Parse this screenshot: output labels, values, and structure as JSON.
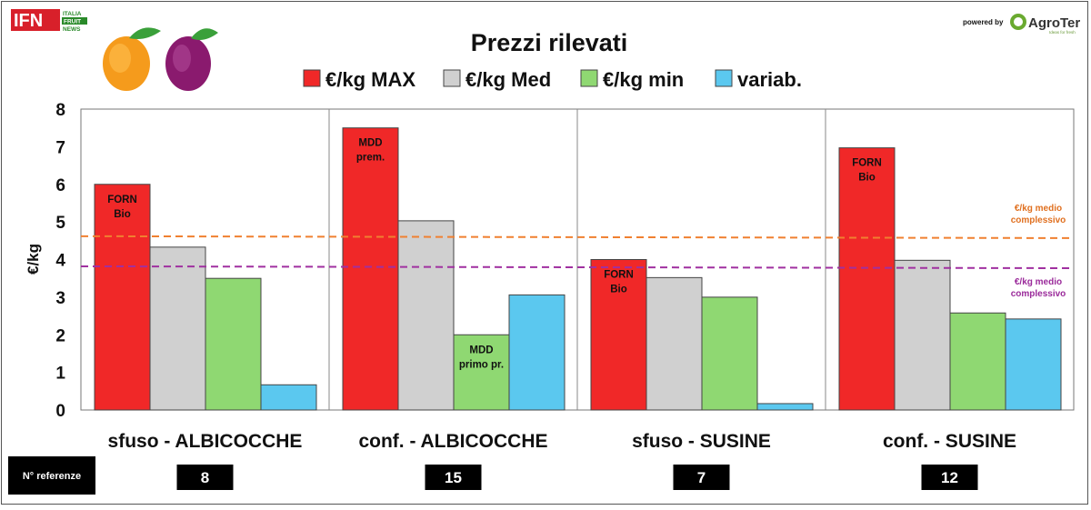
{
  "header": {
    "logo_left": {
      "main": "IFN",
      "line1": "ITALIA",
      "line2": "FRUIT",
      "line3": "NEWS"
    },
    "powered_by": "powered by",
    "logo_right": {
      "name": "AgroTer",
      "tagline": "Ideas for fresh"
    }
  },
  "chart_data": {
    "type": "bar",
    "title": "Prezzi rilevati",
    "ylabel": "€/kg",
    "ylim": [
      0,
      8
    ],
    "yticks": [
      0,
      1,
      2,
      3,
      4,
      5,
      6,
      7,
      8
    ],
    "categories": [
      "sfuso - ALBICOCCHE",
      "conf. - ALBICOCCHE",
      "sfuso - SUSINE",
      "conf. - SUSINE"
    ],
    "series": [
      {
        "name": "€/kg MAX",
        "color": "#f02828",
        "values": [
          6.0,
          7.5,
          4.0,
          6.97
        ]
      },
      {
        "name": "€/kg Med",
        "color": "#d0d0d0",
        "values": [
          4.33,
          5.03,
          3.52,
          3.98
        ]
      },
      {
        "name": "€/kg  min",
        "color": "#8fd872",
        "values": [
          3.5,
          2.0,
          3.0,
          2.58
        ]
      },
      {
        "name": "variab.",
        "color": "#5bc8ef",
        "values": [
          0.67,
          3.06,
          0.17,
          2.42
        ]
      }
    ],
    "annotations": [
      {
        "category": 0,
        "series": 0,
        "lines": [
          "FORN",
          "Bio"
        ]
      },
      {
        "category": 1,
        "series": 0,
        "lines": [
          "MDD",
          "prem."
        ]
      },
      {
        "category": 1,
        "series": 2,
        "lines": [
          "MDD",
          "primo pr."
        ]
      },
      {
        "category": 2,
        "series": 0,
        "lines": [
          "FORN",
          "Bio"
        ]
      },
      {
        "category": 3,
        "series": 0,
        "lines": [
          "FORN",
          "Bio"
        ]
      }
    ],
    "averages": [
      {
        "label_lines": [
          "€/kg medio",
          "complessivo"
        ],
        "value_start": 4.62,
        "value_end": 4.57,
        "color": "#f08030"
      },
      {
        "label_lines": [
          "€/kg medio",
          "complessivo"
        ],
        "value_start": 3.82,
        "value_end": 3.77,
        "color": "#a030a0"
      }
    ],
    "references_label": "N° referenze",
    "references": [
      "8",
      "15",
      "7",
      "12"
    ],
    "grid": false,
    "legend_position": "top"
  }
}
